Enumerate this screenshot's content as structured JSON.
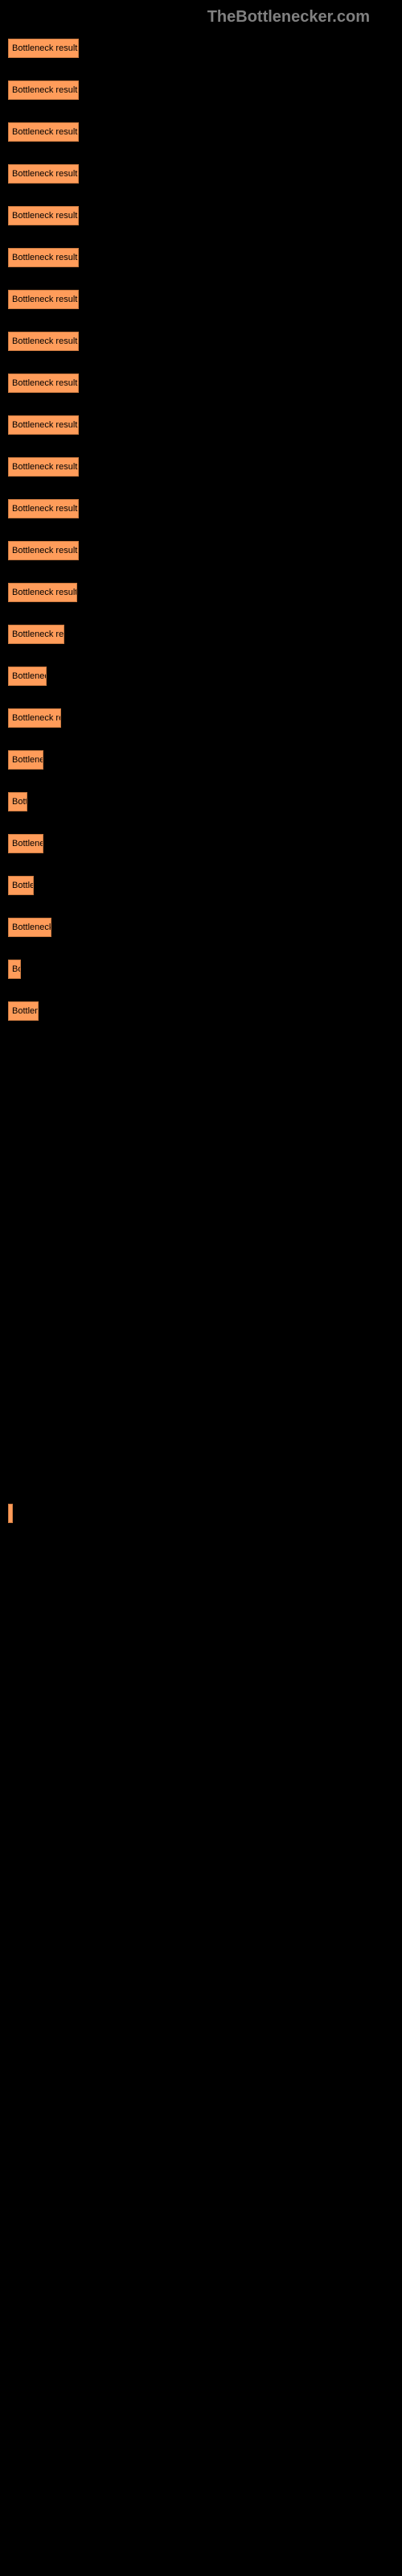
{
  "header": "TheBottlenecker.com",
  "bars": [
    {
      "label": "Bottleneck result",
      "width": 88
    },
    {
      "label": "Bottleneck result",
      "width": 88
    },
    {
      "label": "Bottleneck result",
      "width": 88
    },
    {
      "label": "Bottleneck result",
      "width": 88
    },
    {
      "label": "Bottleneck result",
      "width": 88
    },
    {
      "label": "Bottleneck result",
      "width": 88
    },
    {
      "label": "Bottleneck result",
      "width": 88
    },
    {
      "label": "Bottleneck result",
      "width": 88
    },
    {
      "label": "Bottleneck result",
      "width": 88
    },
    {
      "label": "Bottleneck result",
      "width": 88
    },
    {
      "label": "Bottleneck result",
      "width": 88
    },
    {
      "label": "Bottleneck result",
      "width": 88
    },
    {
      "label": "Bottleneck result",
      "width": 88
    },
    {
      "label": "Bottleneck result",
      "width": 86
    },
    {
      "label": "Bottleneck res",
      "width": 70
    },
    {
      "label": "Bottlenec",
      "width": 48
    },
    {
      "label": "Bottleneck re",
      "width": 66
    },
    {
      "label": "Bottlene",
      "width": 44
    },
    {
      "label": "Bott",
      "width": 24
    },
    {
      "label": "Bottlene",
      "width": 44
    },
    {
      "label": "Bottle",
      "width": 32
    },
    {
      "label": "Bottleneck",
      "width": 54
    },
    {
      "label": "Bo",
      "width": 16
    },
    {
      "label": "Bottlen",
      "width": 38
    },
    {
      "label": "",
      "width": 0
    },
    {
      "label": "",
      "width": 0
    },
    {
      "label": "",
      "width": 0
    },
    {
      "label": "",
      "width": 0
    },
    {
      "label": "",
      "width": 0
    },
    {
      "label": "",
      "width": 0
    },
    {
      "label": "",
      "width": 0
    },
    {
      "label": "",
      "width": 0
    },
    {
      "label": "",
      "width": 0
    },
    {
      "label": "",
      "width": 0
    },
    {
      "label": "",
      "width": 0
    },
    {
      "label": "",
      "width": 2
    },
    {
      "label": "",
      "width": 0
    },
    {
      "label": "",
      "width": 0
    },
    {
      "label": "",
      "width": 0
    },
    {
      "label": "",
      "width": 0
    },
    {
      "label": "",
      "width": 0
    },
    {
      "label": "",
      "width": 0
    },
    {
      "label": "",
      "width": 0
    },
    {
      "label": "",
      "width": 0
    },
    {
      "label": "",
      "width": 0
    },
    {
      "label": "",
      "width": 0
    },
    {
      "label": "",
      "width": 0
    },
    {
      "label": "",
      "width": 0
    },
    {
      "label": "",
      "width": 0
    },
    {
      "label": "",
      "width": 0
    },
    {
      "label": "",
      "width": 0
    },
    {
      "label": "",
      "width": 0
    },
    {
      "label": "",
      "width": 0
    },
    {
      "label": "",
      "width": 0
    },
    {
      "label": "",
      "width": 0
    },
    {
      "label": "",
      "width": 0
    },
    {
      "label": "",
      "width": 0
    },
    {
      "label": "",
      "width": 0
    },
    {
      "label": "",
      "width": 0
    },
    {
      "label": "",
      "width": 0
    }
  ],
  "colors": {
    "background": "#000000",
    "bar_fill": "#ff9c5a",
    "bar_border": "#cc7a40",
    "header_text": "#808080",
    "bar_text": "#000000"
  }
}
